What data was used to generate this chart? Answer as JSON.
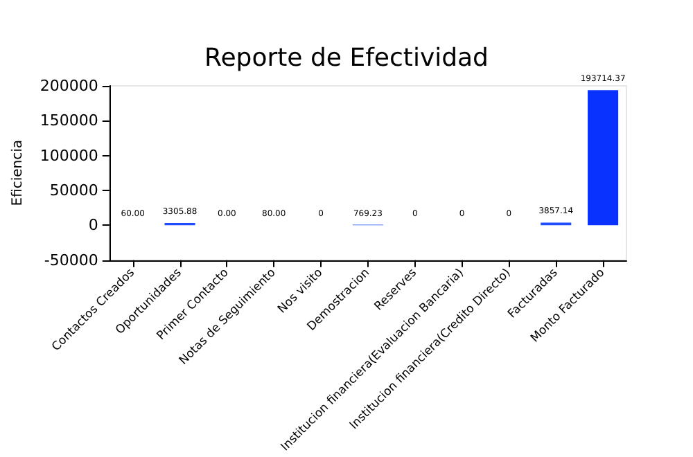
{
  "chart_data": {
    "type": "bar",
    "title": "Reporte de Efectividad",
    "ylabel": "Eficiencia",
    "categories": [
      "Contactos Creados",
      "Oportunidades",
      "Primer Contacto",
      "Notas de Seguimiento",
      "Nos visito",
      "Demostracion",
      "Reserves",
      "Institucion financiera(Evaluacion Bancaria)",
      "Institucion financiera(Credito Directo)",
      "Facturadas",
      "Monto Facturado"
    ],
    "values": [
      60,
      3305.88,
      0,
      80,
      0,
      769.23,
      0,
      0,
      0,
      3857.14,
      193714.37
    ],
    "colors": [
      "#ffff00",
      "#1f4cff",
      "#ff2020",
      "#66ff33",
      "#ff2020",
      "#1f4cff",
      "#ff2020",
      "#ff2020",
      "#ff2020",
      "#1f4cff",
      "#0a32ff"
    ],
    "value_labels": [
      "60.00",
      "3305.88",
      "0.00",
      "80.00",
      "0",
      "769.23",
      "0",
      "0",
      "0",
      "3857.14",
      "193714.37"
    ],
    "ylim": [
      -50000,
      200000
    ],
    "yticks": [
      -50000,
      0,
      50000,
      100000,
      150000,
      200000
    ],
    "grid": false
  }
}
